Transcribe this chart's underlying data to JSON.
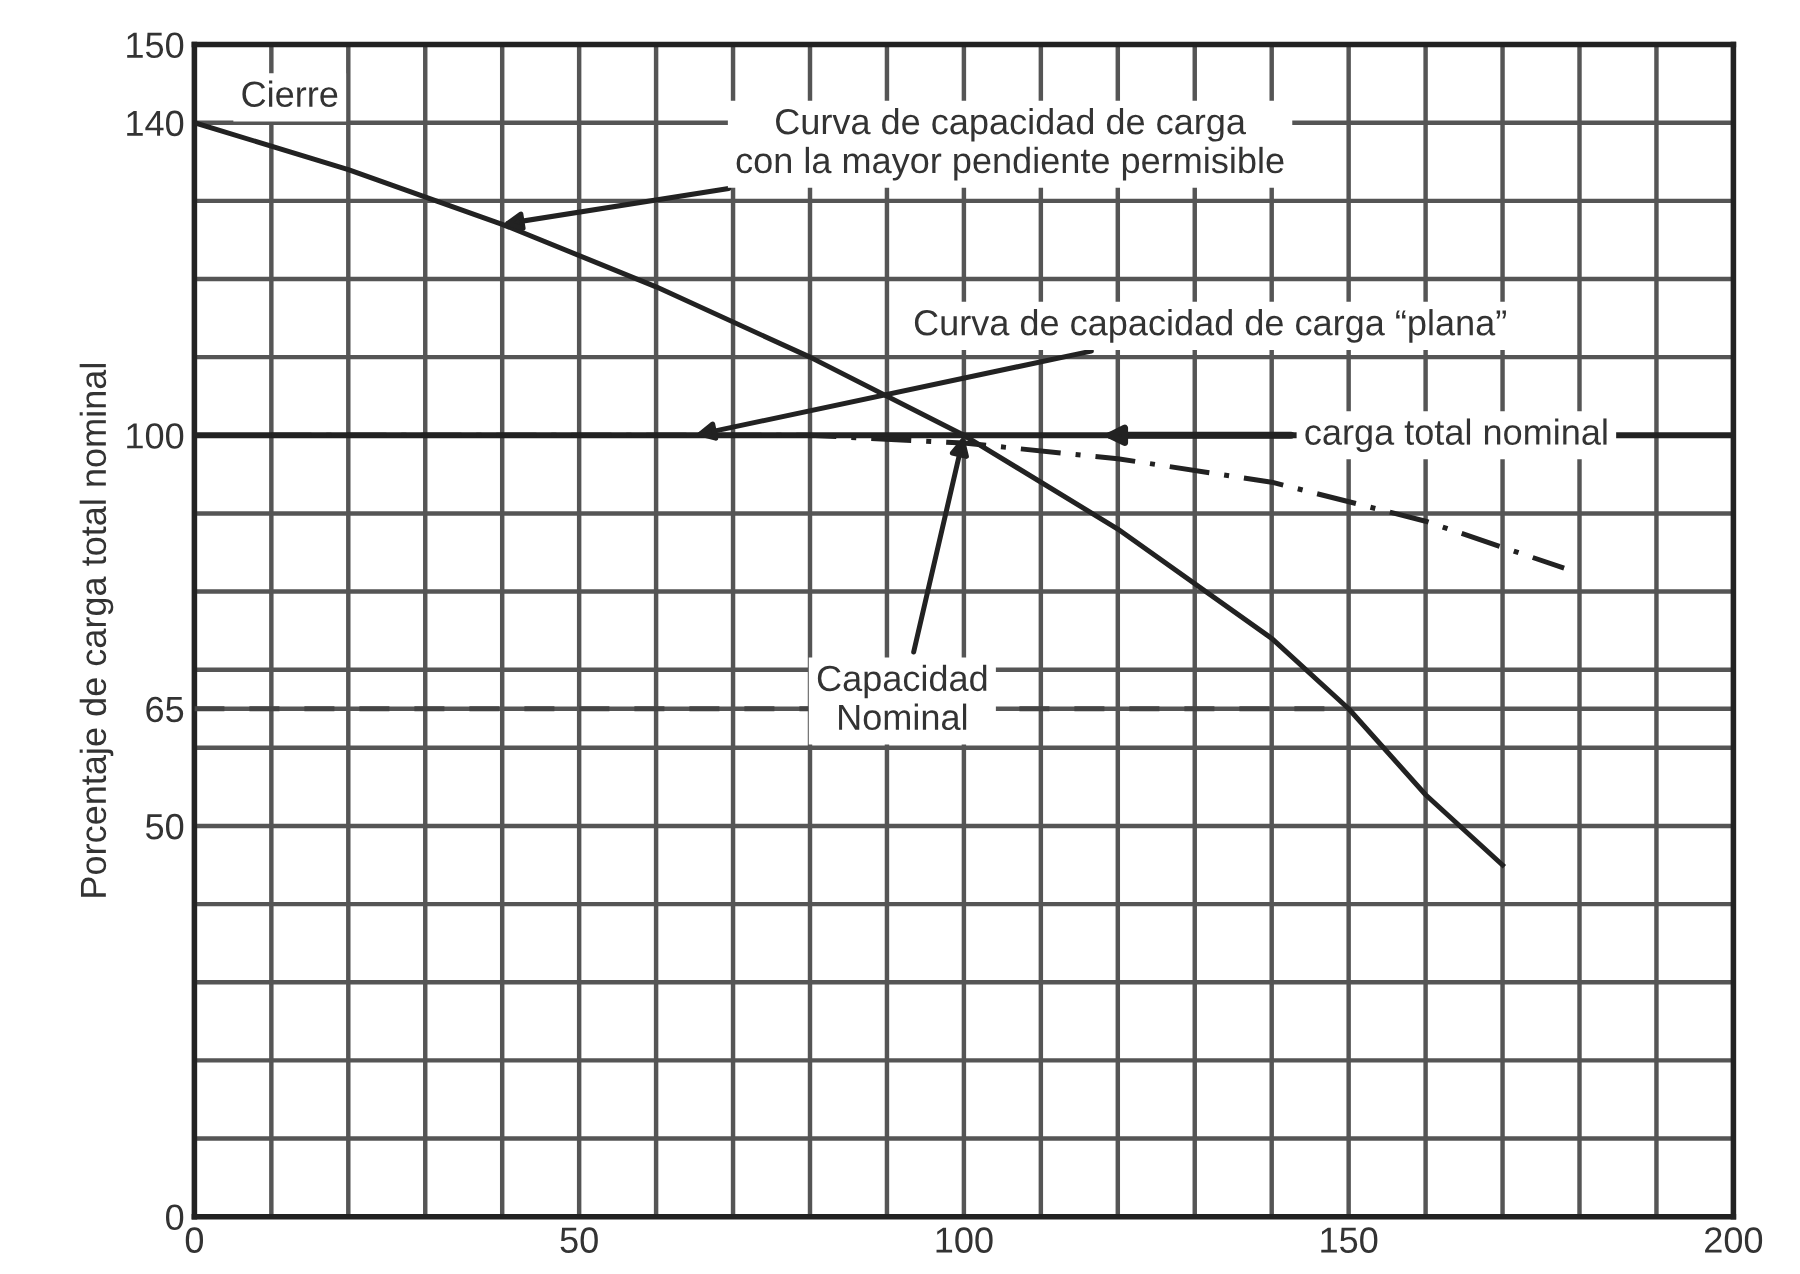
{
  "chart_data": {
    "type": "line",
    "ylabel": "Porcentaje de carga total nominal",
    "series": [
      {
        "color": "#222222",
        "line_style": "solid",
        "x": [
          0,
          20,
          40,
          60,
          80,
          100,
          120,
          140,
          150,
          160,
          170
        ],
        "values": [
          140,
          134,
          127,
          119,
          110,
          100,
          88,
          74,
          65,
          54,
          45
        ]
      },
      {
        "color": "#222222",
        "line_style": "dashed",
        "x": [
          10,
          40,
          80,
          100,
          120,
          140,
          160,
          178
        ],
        "values": [
          100,
          100,
          100,
          99,
          97,
          94,
          89,
          83
        ]
      },
      {
        "color": "#444444",
        "line_style": "dotted",
        "x": [
          0,
          150
        ],
        "values": [
          65,
          65
        ]
      }
    ],
    "annotations": [
      "Cierre",
      {
        "text": "Curva de capacidad de carga\ncon la mayor pendiente permisible",
        "x": 40,
        "y": 127
      },
      {
        "text": "Curva de capacidad de carga “plana”",
        "x": 65,
        "y": 100
      },
      {
        "text": "Capacidad\nNominal",
        "x": 100,
        "y": 100
      }
    ],
    "ref_lines": [
      {
        "axis": "y",
        "value": 100,
        "label": "carga total nominal",
        "color": "#222222"
      }
    ],
    "xlim": [
      0,
      200
    ],
    "xticks": [
      0,
      {
        "value": 10,
        "label": null
      },
      {
        "value": 20,
        "label": null
      },
      {
        "value": 30,
        "label": null
      },
      {
        "value": 40,
        "label": null
      },
      50,
      {
        "value": 60,
        "label": null
      },
      {
        "value": 70,
        "label": null
      },
      {
        "value": 80,
        "label": null
      },
      {
        "value": 90,
        "label": null
      },
      100,
      {
        "value": 110,
        "label": null
      },
      {
        "value": 120,
        "label": null
      },
      {
        "value": 130,
        "label": null
      },
      {
        "value": 140,
        "label": null
      },
      150,
      {
        "value": 160,
        "label": null
      },
      {
        "value": 170,
        "label": null
      },
      {
        "value": 180,
        "label": null
      },
      {
        "value": 190,
        "label": null
      },
      200
    ],
    "ylim": [
      0,
      150
    ],
    "yticks": [
      0,
      {
        "value": 10,
        "label": null
      },
      {
        "value": 20,
        "label": null
      },
      {
        "value": 30,
        "label": null
      },
      {
        "value": 40,
        "label": null
      },
      50,
      {
        "value": 60,
        "label": null
      },
      65,
      {
        "value": 70,
        "label": null
      },
      {
        "value": 80,
        "label": null
      },
      {
        "value": 90,
        "label": null
      },
      100,
      {
        "value": 110,
        "label": null
      },
      {
        "value": 120,
        "label": null
      },
      {
        "value": 130,
        "label": null
      },
      140,
      150
    ],
    "grid": true,
    "marker": "none"
  }
}
